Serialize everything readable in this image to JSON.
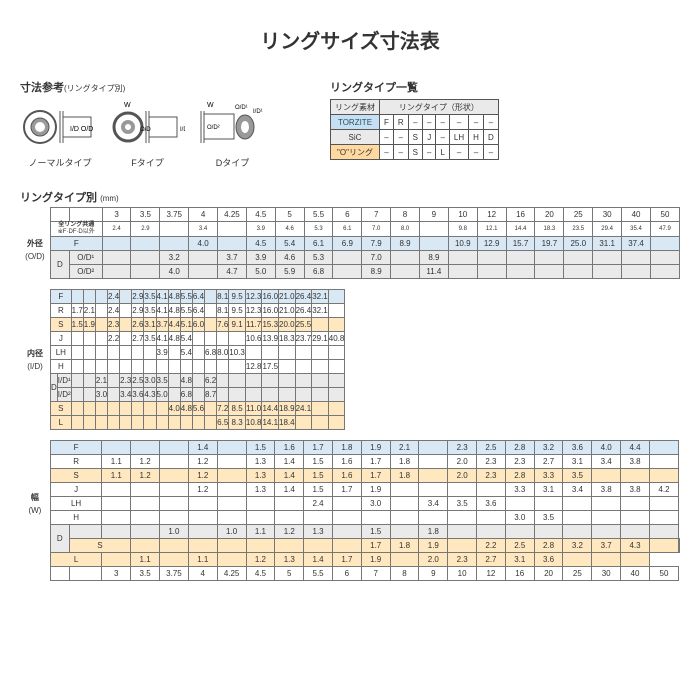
{
  "title": "リングサイズ寸法表",
  "ref": {
    "label": "寸法参考",
    "sub": "(リングタイプ別)",
    "diagrams": [
      "ノーマルタイプ",
      "Fタイプ",
      "Dタイプ"
    ]
  },
  "ringtype": {
    "label": "リングタイプ一覧",
    "header1": "リング素材",
    "header2": "リングタイプ（形状）",
    "rows": [
      {
        "k": "TORZITE",
        "c": "hdr-blue",
        "cells": [
          "F",
          "R",
          "–",
          "–",
          "–",
          "–",
          "–",
          "–"
        ]
      },
      {
        "k": "SiC",
        "c": "",
        "cells": [
          "–",
          "–",
          "S",
          "J",
          "–",
          "LH",
          "H",
          "D"
        ]
      },
      {
        "k": "\"O\"リング",
        "c": "hdr-orange",
        "cells": [
          "–",
          "–",
          "S",
          "–",
          "L",
          "–",
          "–",
          "–"
        ]
      }
    ]
  },
  "cols": [
    "3",
    "3.5",
    "3.75",
    "4",
    "4.25",
    "4.5",
    "5",
    "5.5",
    "6",
    "7",
    "8",
    "9",
    "10",
    "12",
    "16",
    "20",
    "25",
    "30",
    "40",
    "50"
  ],
  "secLabel": "リングタイプ別",
  "unit": "(mm)",
  "od": {
    "label": "外径",
    "sub": "(O/D)",
    "rows": [
      [
        "common",
        "全リング共通",
        "※F·DF·D以外",
        "2.4",
        "2.9",
        "",
        "3.4",
        "",
        "3.9",
        "4.6",
        "5.3",
        "6.1",
        "7.0",
        "8.0",
        "",
        "9.8",
        "12.1",
        "14.4",
        "18.3",
        "23.5",
        "29.4",
        "35.4",
        "47.9"
      ],
      [
        "F",
        "F",
        "",
        "",
        "",
        "",
        "4.0",
        "",
        "4.5",
        "5.4",
        "6.1",
        "6.9",
        "7.9",
        "8.9",
        "",
        "10.9",
        "12.9",
        "15.7",
        "19.7",
        "25.0",
        "31.1",
        "37.4",
        ""
      ],
      [
        "D",
        "D",
        "O/D¹",
        "",
        "",
        "3.2",
        "",
        "3.7",
        "3.9",
        "4.6",
        "5.3",
        "",
        "7.0",
        "",
        "8.9",
        "",
        "",
        "",
        "",
        "",
        "",
        "",
        ""
      ],
      [
        "D",
        "",
        "O/D²",
        "",
        "",
        "4.0",
        "",
        "4.7",
        "5.0",
        "5.9",
        "6.8",
        "",
        "8.9",
        "",
        "11.4",
        "",
        "",
        "",
        "",
        "",
        "",
        "",
        ""
      ]
    ]
  },
  "id": {
    "label": "内径",
    "sub": "(I/D)",
    "rows": [
      [
        "F",
        "F",
        "",
        "",
        "",
        "",
        "2.4",
        "",
        "2.9",
        "3.5",
        "4.1",
        "4.8",
        "5.5",
        "6.4",
        "",
        "8.1",
        "9.5",
        "12.3",
        "16.0",
        "21.0",
        "26.4",
        "32.1",
        ""
      ],
      [
        "",
        "R",
        "",
        "1.7",
        "2.1",
        "",
        "2.4",
        "",
        "2.9",
        "3.5",
        "4.1",
        "4.8",
        "5.5",
        "6.4",
        "",
        "8.1",
        "9.5",
        "12.3",
        "16.0",
        "21.0",
        "26.4",
        "32.1",
        ""
      ],
      [
        "S",
        "S",
        "",
        "1.5",
        "1.9",
        "",
        "2.3",
        "",
        "2.6",
        "3.1",
        "3.7",
        "4.4",
        "5.1",
        "6.0",
        "",
        "7.6",
        "9.1",
        "11.7",
        "15.3",
        "20.0",
        "25.5",
        "",
        ""
      ],
      [
        "",
        "J",
        "",
        "",
        "",
        "",
        "2.2",
        "",
        "2.7",
        "3.5",
        "4.1",
        "4.8",
        "5.4",
        "",
        "",
        "",
        "",
        "10.6",
        "13.9",
        "18.3",
        "23.7",
        "29.1",
        "40.8"
      ],
      [
        "",
        "LH",
        "",
        "",
        "",
        "",
        "",
        "",
        "",
        "",
        "3.9",
        "",
        "5.4",
        "",
        "6.8",
        "8.0",
        "10.3",
        "",
        "",
        "",
        "",
        "",
        ""
      ],
      [
        "",
        "H",
        "",
        "",
        "",
        "",
        "",
        "",
        "",
        "",
        "",
        "",
        "",
        "",
        "",
        "",
        "",
        "12.8",
        "17.5",
        "",
        "",
        "",
        ""
      ],
      [
        "D",
        "D",
        "I/D¹",
        "",
        "",
        "2.1",
        "",
        "2.3",
        "2.5",
        "3.0",
        "3.5",
        "",
        "4.8",
        "",
        "6.2",
        "",
        "",
        "",
        "",
        "",
        "",
        "",
        ""
      ],
      [
        "D",
        "",
        "I/D²",
        "",
        "",
        "3.0",
        "",
        "3.4",
        "3.6",
        "4.3",
        "5.0",
        "",
        "6.8",
        "",
        "8.7",
        "",
        "",
        "",
        "",
        "",
        "",
        "",
        ""
      ],
      [
        "S",
        "S",
        "",
        "",
        "",
        "",
        "",
        "",
        "",
        "",
        "",
        "4.0",
        "4.8",
        "5.6",
        "",
        "7.2",
        "8.5",
        "11.0",
        "14.4",
        "18.9",
        "24.1",
        "",
        ""
      ],
      [
        "L",
        "L",
        "",
        "",
        "",
        "",
        "",
        "",
        "",
        "",
        "",
        "",
        "",
        "",
        "",
        "6.5",
        "8.3",
        "10.8",
        "14.1",
        "18.4",
        "",
        "",
        ""
      ]
    ]
  },
  "w": {
    "label": "幅",
    "sub": "(W)",
    "rows": [
      [
        "F",
        "F",
        "",
        "",
        "",
        "",
        "1.4",
        "",
        "1.5",
        "1.6",
        "1.7",
        "1.8",
        "1.9",
        "2.1",
        "",
        "2.3",
        "2.5",
        "2.8",
        "3.2",
        "3.6",
        "4.0",
        "4.4",
        ""
      ],
      [
        "",
        "R",
        "",
        "1.1",
        "1.2",
        "",
        "1.2",
        "",
        "1.3",
        "1.4",
        "1.5",
        "1.6",
        "1.7",
        "1.8",
        "",
        "2.0",
        "2.3",
        "2.3",
        "2.7",
        "3.1",
        "3.4",
        "3.8",
        ""
      ],
      [
        "S",
        "S",
        "",
        "1.1",
        "1.2",
        "",
        "1.2",
        "",
        "1.3",
        "1.4",
        "1.5",
        "1.6",
        "1.7",
        "1.8",
        "",
        "2.0",
        "2.3",
        "2.8",
        "3.3",
        "3.5",
        "",
        "",
        ""
      ],
      [
        "",
        "J",
        "",
        "",
        "",
        "",
        "1.2",
        "",
        "1.3",
        "1.4",
        "1.5",
        "1.7",
        "1.9",
        "",
        "",
        "",
        "",
        "3.3",
        "3.1",
        "3.4",
        "3.8",
        "3.8",
        "4.2"
      ],
      [
        "",
        "LH",
        "",
        "",
        "",
        "",
        "",
        "",
        "",
        "",
        "2.4",
        "",
        "3.0",
        "",
        "3.4",
        "3.5",
        "3.6",
        "",
        "",
        "",
        "",
        "",
        ""
      ],
      [
        "",
        "H",
        "",
        "",
        "",
        "",
        "",
        "",
        "",
        "",
        "",
        "",
        "",
        "",
        "",
        "",
        "",
        "3.0",
        "3.5",
        "",
        "",
        "",
        ""
      ],
      [
        "D",
        "D",
        "",
        "",
        "",
        "1.0",
        "",
        "1.0",
        "1.1",
        "1.2",
        "1.3",
        "",
        "1.5",
        "",
        "1.8",
        "",
        "",
        "",
        "",
        "",
        "",
        "",
        ""
      ],
      [
        "S",
        "S",
        "",
        "",
        "",
        "",
        "",
        "",
        "",
        "",
        "",
        "1.7",
        "1.8",
        "1.9",
        "",
        "2.2",
        "2.5",
        "2.8",
        "3.2",
        "3.7",
        "4.3",
        "",
        ""
      ],
      [
        "L",
        "L",
        "",
        "",
        "1.1",
        "",
        "1.1",
        "",
        "1.2",
        "1.3",
        "1.4",
        "1.7",
        "1.9",
        "",
        "2.0",
        "2.3",
        "2.7",
        "3.1",
        "3.6",
        "",
        "",
        ""
      ]
    ]
  }
}
